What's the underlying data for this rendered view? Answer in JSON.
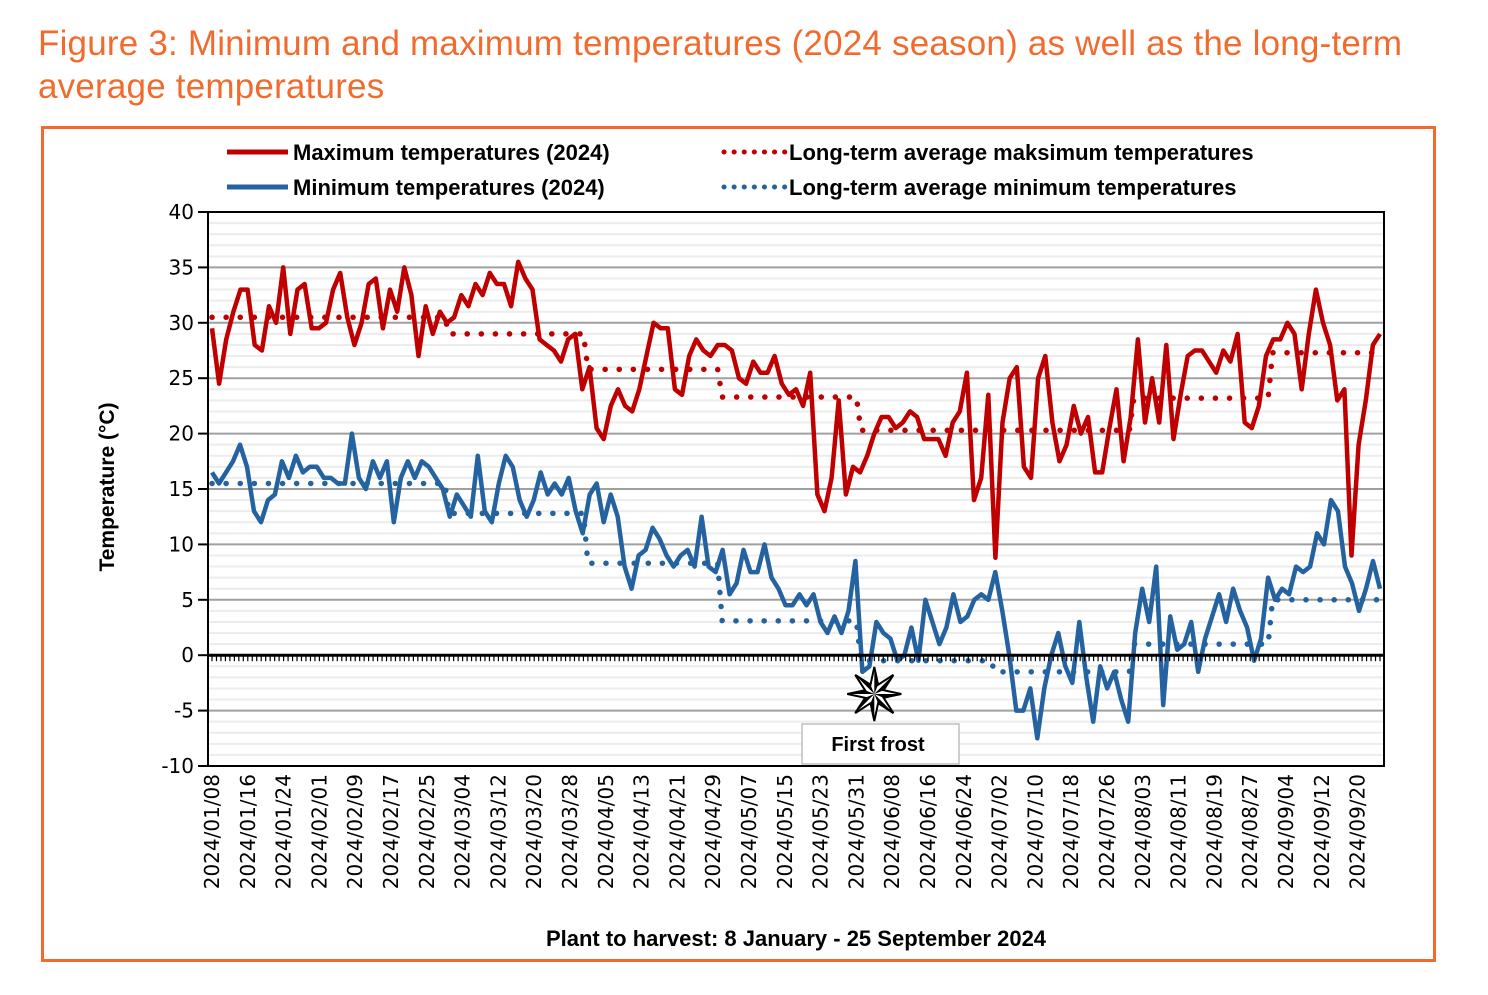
{
  "figure": {
    "title": "Figure 3: Minimum and maximum temperatures (2024 season) as well as the long-term average temperatures",
    "title_color": "#f26b2e",
    "frame_color": "#f26b2e"
  },
  "chart_data": {
    "type": "line",
    "title": "Figure 3: Minimum and maximum temperatures (2024 season) as well as the long-term average temperatures",
    "xlabel": "Plant to harvest: 8 January - 25 September 2024",
    "ylabel": "Temperature (°C)",
    "ylim": [
      -10,
      40
    ],
    "yticks": [
      40,
      35,
      30,
      25,
      20,
      15,
      10,
      5,
      0,
      -5,
      -10
    ],
    "x_start": "2024-01-08",
    "x_end": "2024-09-25",
    "x_step_days": 2,
    "grid": true,
    "legend_position": "top",
    "xtick_labels": [
      "2024/01/08",
      "2024/01/16",
      "2024/01/24",
      "2024/02/01",
      "2024/02/09",
      "2024/02/17",
      "2024/02/25",
      "2024/03/04",
      "2024/03/12",
      "2024/03/20",
      "2024/03/28",
      "2024/04/05",
      "2024/04/13",
      "2024/04/21",
      "2024/04/29",
      "2024/05/07",
      "2024/05/15",
      "2024/05/23",
      "2024/05/31",
      "2024/06/08",
      "2024/06/16",
      "2024/06/24",
      "2024/07/02",
      "2024/07/10",
      "2024/07/18",
      "2024/07/26",
      "2024/08/03",
      "2024/08/11",
      "2024/08/19",
      "2024/08/27",
      "2024/09/04",
      "2024/09/12",
      "2024/09/20"
    ],
    "series": [
      {
        "name": "Maximum temperatures (2024)",
        "color": "#c00000",
        "style": "solid",
        "values": [
          29.5,
          24.5,
          28.5,
          31,
          33,
          33,
          28,
          27.5,
          31.5,
          30,
          35,
          29,
          33,
          33.5,
          29.5,
          29.5,
          30,
          33,
          34.5,
          30.5,
          28,
          30,
          33.5,
          34,
          29.5,
          33,
          31,
          35,
          32.5,
          27,
          31.5,
          29,
          31,
          30,
          30.5,
          32.5,
          31.5,
          33.5,
          32.5,
          34.5,
          33.5,
          33.5,
          31.5,
          35.5,
          34,
          33,
          28.5,
          28,
          27.5,
          26.5,
          28.5,
          29,
          24,
          26,
          20.5,
          19.5,
          22.5,
          24,
          22.5,
          22,
          24,
          27,
          30,
          29.5,
          29.5,
          24,
          23.5,
          27,
          28.5,
          27.5,
          27,
          28,
          28,
          27.5,
          25,
          24.5,
          26.5,
          25.5,
          25.5,
          27,
          24.5,
          23.5,
          24,
          22.5,
          25.5,
          14.5,
          13,
          16,
          23,
          14.5,
          17,
          16.5,
          18,
          20,
          21.5,
          21.5,
          20.5,
          21,
          22,
          21.5,
          19.5,
          19.5,
          19.5,
          18,
          21,
          22,
          25.5,
          14,
          16,
          23.5,
          8.8,
          21,
          25,
          26,
          17,
          16,
          25,
          27,
          21,
          17.5,
          19,
          22.5,
          20,
          21.5,
          16.5,
          16.5,
          20.5,
          24,
          17.5,
          21.5,
          28.5,
          21,
          25,
          21,
          28,
          19.5,
          23.5,
          27,
          27.5,
          27.5,
          26.5,
          25.5,
          27.5,
          26.5,
          29,
          21,
          20.5,
          22.5,
          27,
          28.5,
          28.5,
          30,
          29,
          24,
          29,
          33,
          30,
          28,
          23,
          24,
          9,
          19,
          23,
          28,
          29
        ]
      },
      {
        "name": "Long-term average maksimum temperatures",
        "color": "#c00000",
        "style": "dotted",
        "segments": [
          {
            "from": "2024-01-08",
            "to": "2024-02-29",
            "value": 30.5
          },
          {
            "from": "2024-03-01",
            "to": "2024-03-31",
            "value": 29.0
          },
          {
            "from": "2024-04-01",
            "to": "2024-04-30",
            "value": 25.8
          },
          {
            "from": "2024-05-01",
            "to": "2024-05-31",
            "value": 23.3
          },
          {
            "from": "2024-06-01",
            "to": "2024-07-31",
            "value": 20.3
          },
          {
            "from": "2024-08-01",
            "to": "2024-08-31",
            "value": 23.2
          },
          {
            "from": "2024-09-01",
            "to": "2024-09-25",
            "value": 27.3
          }
        ]
      },
      {
        "name": "Minimum temperatures (2024)",
        "color": "#2463a0",
        "style": "solid",
        "values": [
          16.5,
          15.5,
          16.5,
          17.5,
          19,
          17,
          13,
          12,
          14,
          14.5,
          17.5,
          16,
          18,
          16.5,
          17,
          17,
          16,
          16,
          15.5,
          15.5,
          20,
          16,
          15,
          17.5,
          16,
          17.5,
          12,
          16,
          17.5,
          16,
          17.5,
          17,
          16,
          15,
          12.5,
          14.5,
          13.5,
          12.5,
          18,
          13,
          12,
          15.5,
          18,
          17,
          14,
          12.5,
          14,
          16.5,
          14.5,
          15.5,
          14.5,
          16,
          13,
          11,
          14.5,
          15.5,
          12,
          14.5,
          12.5,
          8,
          6,
          9,
          9.5,
          11.5,
          10.5,
          9,
          8,
          9,
          9.5,
          8,
          12.5,
          8,
          7.5,
          9.5,
          5.5,
          6.5,
          9.5,
          7.5,
          7.5,
          10,
          7,
          6,
          4.5,
          4.5,
          5.5,
          4.5,
          5.5,
          3,
          2,
          3.5,
          2,
          4,
          8.5,
          -1.5,
          -1,
          3,
          2,
          1.5,
          -0.5,
          0,
          2.5,
          -0.5,
          5,
          3,
          1,
          2.5,
          5.5,
          3,
          3.5,
          5,
          5.5,
          5,
          7.5,
          4,
          0,
          -5,
          -5,
          -3,
          -7.5,
          -3,
          0,
          2,
          -1,
          -2.5,
          3,
          -2,
          -6,
          -1,
          -3,
          -1.5,
          -4,
          -6,
          2,
          6,
          3,
          8,
          -4.5,
          3.5,
          0.5,
          1,
          3,
          -1.5,
          1.5,
          3.5,
          5.5,
          3,
          6,
          4,
          2.5,
          -0.5,
          1.5,
          7,
          5,
          6,
          5.5,
          8,
          7.5,
          8,
          11,
          10,
          14,
          13,
          8,
          6.5,
          4,
          6,
          8.5,
          6
        ]
      },
      {
        "name": "Long-term average minimum temperatures",
        "color": "#2463a0",
        "style": "dotted",
        "segments": [
          {
            "from": "2024-01-08",
            "to": "2024-02-29",
            "value": 15.5
          },
          {
            "from": "2024-03-01",
            "to": "2024-03-31",
            "value": 12.8
          },
          {
            "from": "2024-04-01",
            "to": "2024-04-30",
            "value": 8.3
          },
          {
            "from": "2024-05-01",
            "to": "2024-05-31",
            "value": 3.1
          },
          {
            "from": "2024-06-01",
            "to": "2024-06-30",
            "value": -0.5
          },
          {
            "from": "2024-07-01",
            "to": "2024-07-31",
            "value": -1.5
          },
          {
            "from": "2024-08-01",
            "to": "2024-08-31",
            "value": 1.0
          },
          {
            "from": "2024-09-01",
            "to": "2024-09-25",
            "value": 5.0
          }
        ]
      }
    ],
    "annotations": [
      {
        "type": "marker",
        "symbol": "star",
        "date": "2024-06-04",
        "value": -3.5,
        "label": "First frost"
      }
    ]
  },
  "legend": {
    "items": [
      {
        "label": "Maximum temperatures (2024)",
        "style": "solid",
        "color": "#c00000"
      },
      {
        "label": "Long-term average maksimum temperatures",
        "style": "dotted",
        "color": "#c00000"
      },
      {
        "label": "Minimum temperatures (2024)",
        "style": "solid",
        "color": "#2463a0"
      },
      {
        "label": "Long-term average minimum temperatures",
        "style": "dotted",
        "color": "#2463a0"
      }
    ]
  },
  "annotation": {
    "first_frost_label": "First frost"
  }
}
